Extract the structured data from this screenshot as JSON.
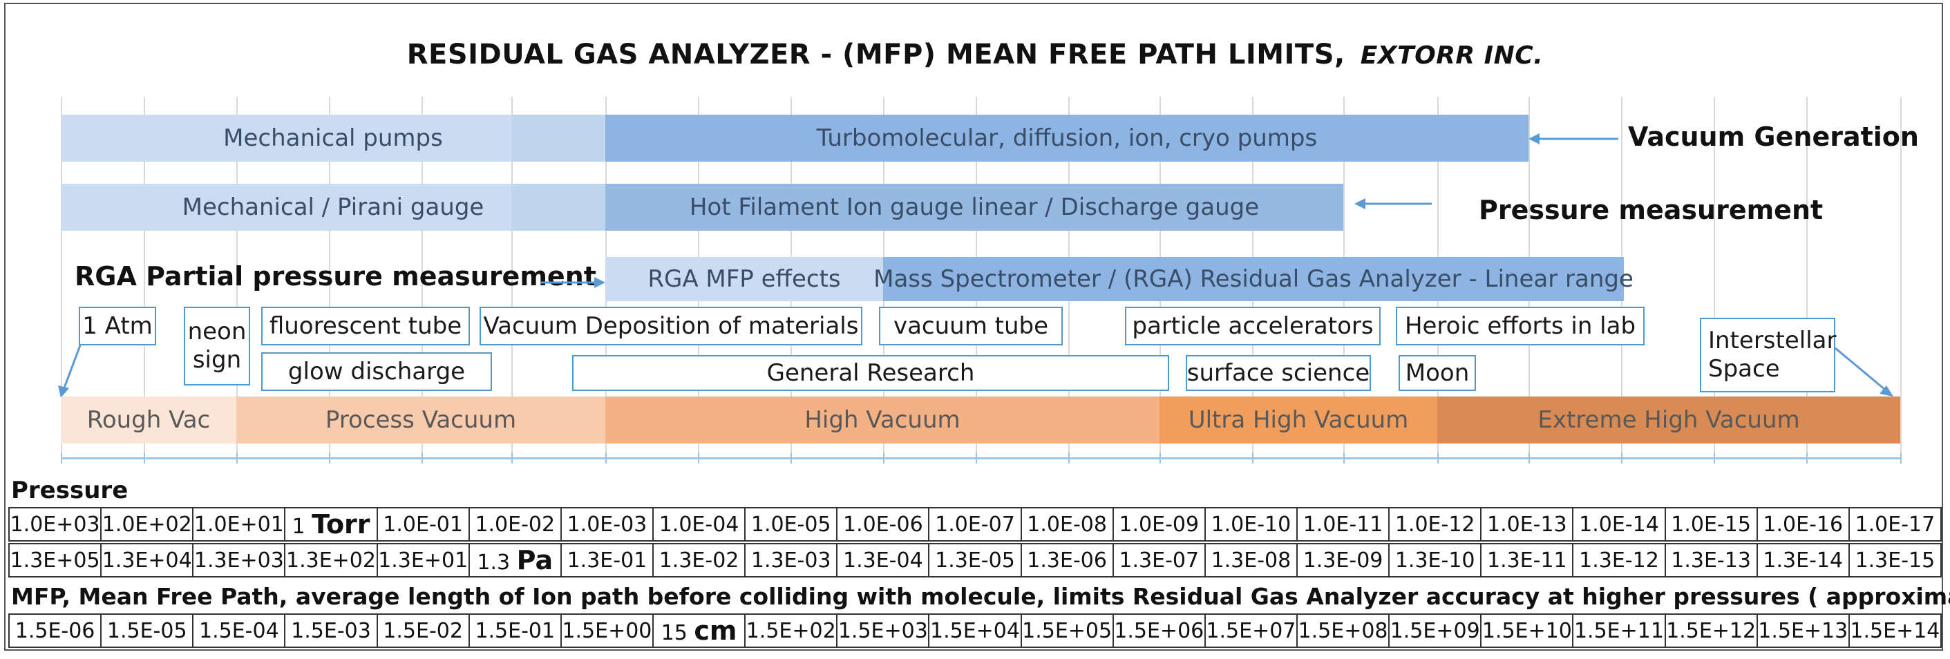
{
  "title": {
    "main": "RESIDUAL GAS ANALYZER - (MFP) MEAN FREE PATH LIMITS,",
    "company": "EXTORR INC."
  },
  "bars": {
    "mechanical_pumps": "Mechanical pumps",
    "turbo_pumps": "Turbomolecular, diffusion, ion, cryo pumps",
    "pirani": "Mechanical / Pirani gauge",
    "hot_filament": "Hot Filament Ion gauge linear / Discharge gauge",
    "rga_mfp": "RGA MFP effects",
    "mass_spec": "Mass Spectrometer / (RGA) Residual Gas Analyzer - Linear range"
  },
  "labels": {
    "vacuum_generation": "Vacuum Generation",
    "pressure_measurement": "Pressure measurement",
    "rga_partial": "RGA Partial pressure measurement"
  },
  "tags": {
    "atm": "1 Atm",
    "neon": "neon sign",
    "fluorescent": "fluorescent tube",
    "glow": "glow discharge",
    "deposition": "Vacuum Deposition of materials",
    "vacuum_tube": "vacuum tube",
    "research": "General Research",
    "accelerators": "particle accelerators",
    "surface": "surface science",
    "heroic": "Heroic efforts in lab",
    "moon": "Moon",
    "interstellar": "Interstellar Space"
  },
  "ranges": {
    "rough": "Rough Vac",
    "process": "Process Vacuum",
    "high": "High Vacuum",
    "ultra": "Ultra High Vacuum",
    "extreme": "Extreme High Vacuum"
  },
  "sections": {
    "pressure": "Pressure",
    "mfp": "MFP, Mean Free Path, average length of Ion path before colliding with molecule, limits Residual Gas Analyzer accuracy at higher pressures ( approximate)"
  },
  "rows": {
    "torr": [
      "1.0E+03",
      "1.0E+02",
      "1.0E+01",
      "1",
      "1.0E-01",
      "1.0E-02",
      "1.0E-03",
      "1.0E-04",
      "1.0E-05",
      "1.0E-06",
      "1.0E-07",
      "1.0E-08",
      "1.0E-09",
      "1.0E-10",
      "1.0E-11",
      "1.0E-12",
      "1.0E-13",
      "1.0E-14",
      "1.0E-15",
      "1.0E-16",
      "1.0E-17"
    ],
    "torr_unit": "Torr",
    "pa": [
      "1.3E+05",
      "1.3E+04",
      "1.3E+03",
      "1.3E+02",
      "1.3E+01",
      "1.3",
      "1.3E-01",
      "1.3E-02",
      "1.3E-03",
      "1.3E-04",
      "1.3E-05",
      "1.3E-06",
      "1.3E-07",
      "1.3E-08",
      "1.3E-09",
      "1.3E-10",
      "1.3E-11",
      "1.3E-12",
      "1.3E-13",
      "1.3E-14",
      "1.3E-15"
    ],
    "pa_unit": "Pa",
    "mfp": [
      "1.5E-06",
      "1.5E-05",
      "1.5E-04",
      "1.5E-03",
      "1.5E-02",
      "1.5E-01",
      "1.5E+00",
      "15",
      "1.5E+02",
      "1.5E+03",
      "1.5E+04",
      "1.5E+05",
      "1.5E+06",
      "1.5E+07",
      "1.5E+08",
      "1.5E+09",
      "1.5E+10",
      "1.5E+11",
      "1.5E+12",
      "1.5E+13",
      "1.5E+14"
    ],
    "mfp_unit": "cm"
  },
  "colors": {
    "light_blue": "#c9dcf1",
    "mid_blue": "#8db4e2",
    "gauge_blue": "#95b9e3",
    "rough": "#fbe5d6",
    "process": "#f8cbad",
    "high": "#f4b183",
    "ultra": "#f19e5c",
    "extreme": "#d98b53",
    "tag_border": "#4b9bd1"
  }
}
